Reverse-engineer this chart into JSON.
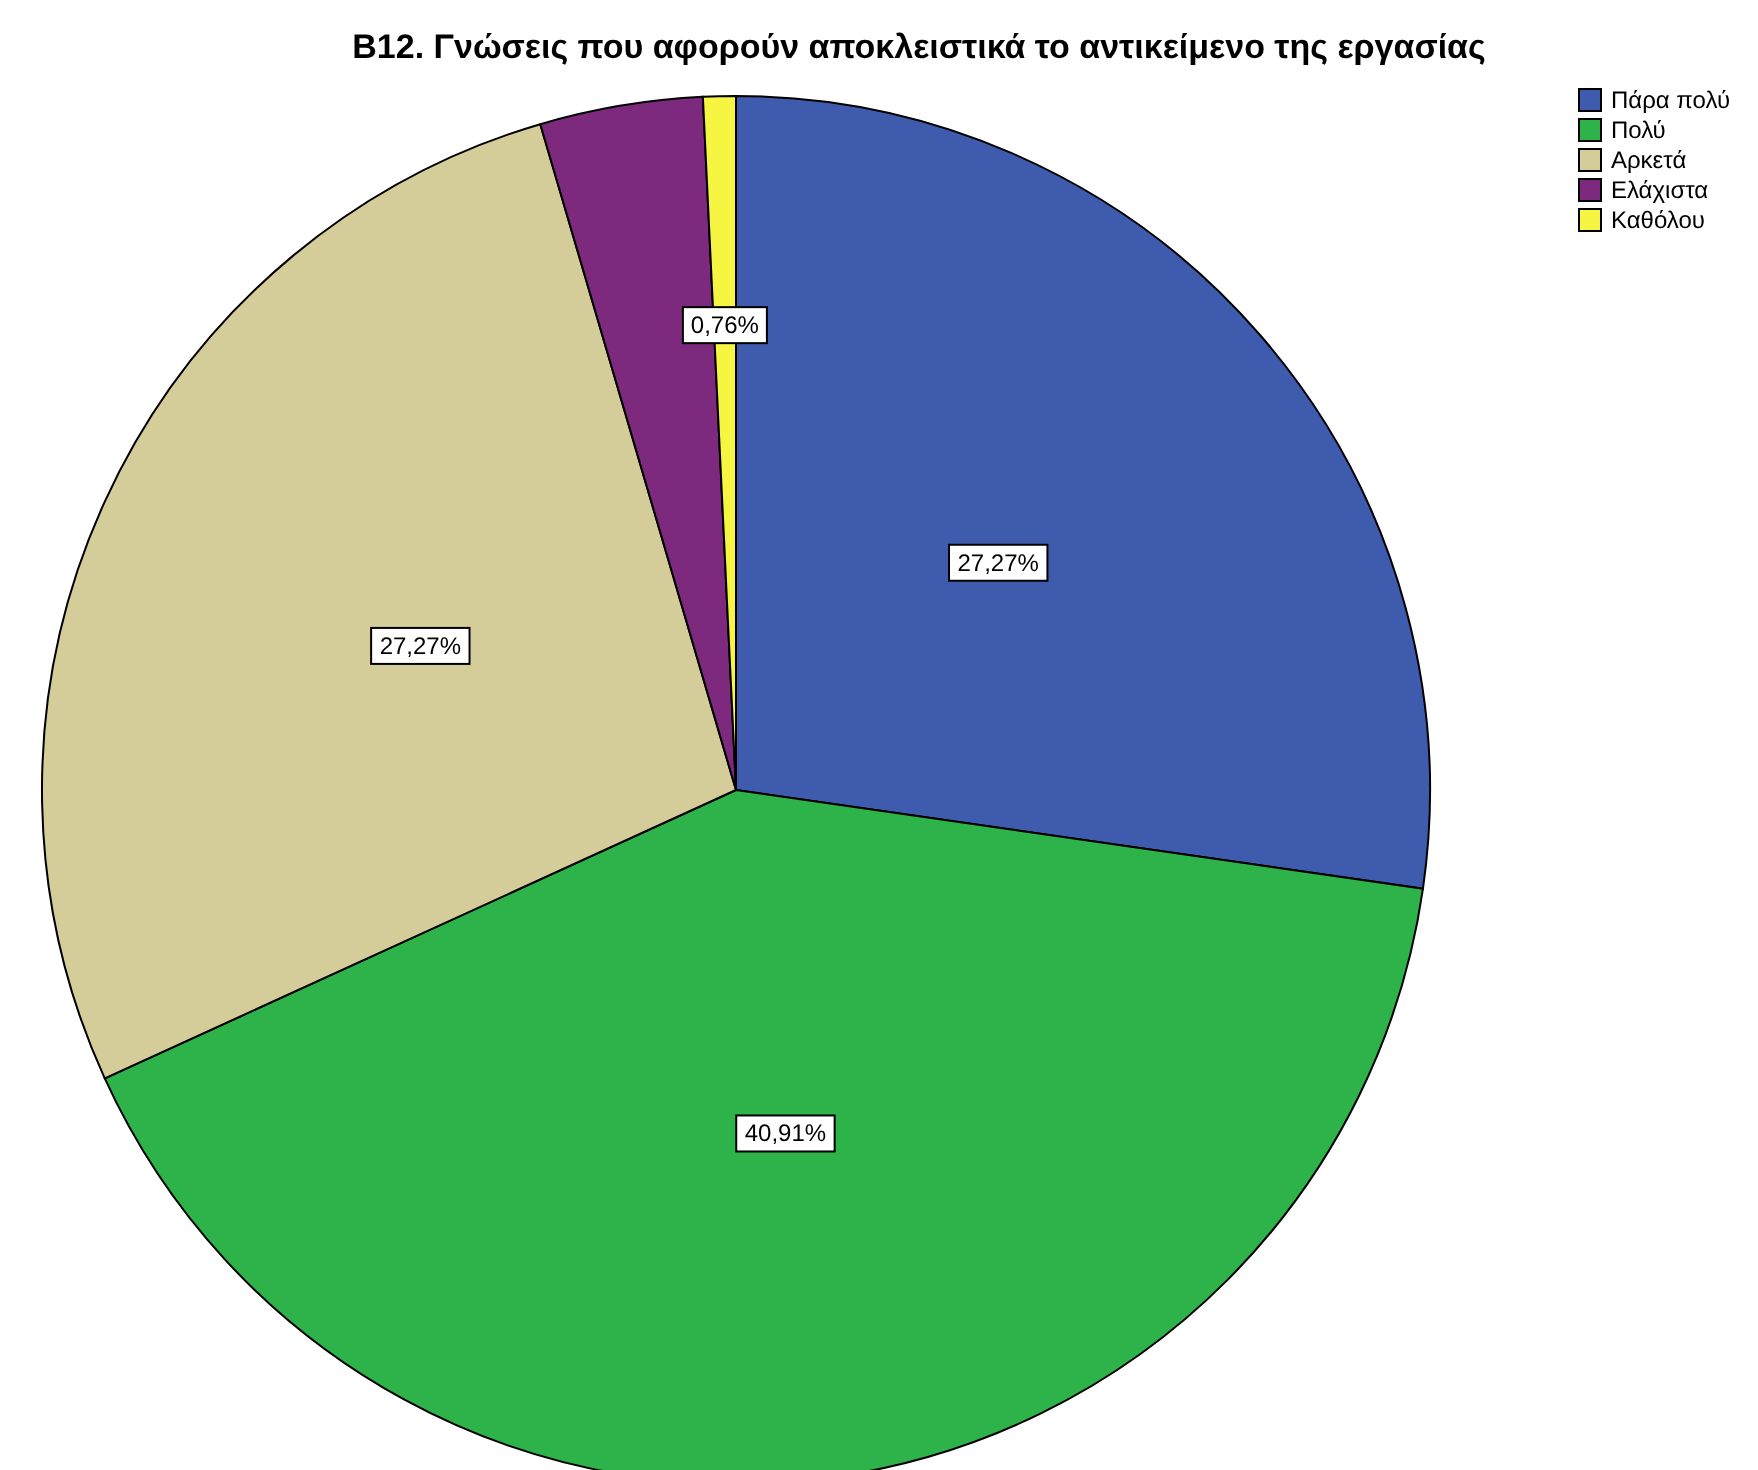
{
  "chart_data": {
    "type": "pie",
    "title": "B12. Γνώσεις που αφορούν αποκλειστικά το αντικείμενο της εργασίας",
    "categories": [
      "Πάρα πολύ",
      "Πολύ",
      "Αρκετά",
      "Ελάχιστα",
      "Καθόλου"
    ],
    "values": [
      27.27,
      40.91,
      27.27,
      3.79,
      0.76
    ],
    "colors": [
      "#3f5bad",
      "#2eb24a",
      "#d4cc99",
      "#7d2a7e",
      "#f5f542"
    ],
    "value_labels": [
      "27,27%",
      "40,91%",
      "27,27%",
      null,
      "0,76%"
    ],
    "legend": "top right"
  }
}
